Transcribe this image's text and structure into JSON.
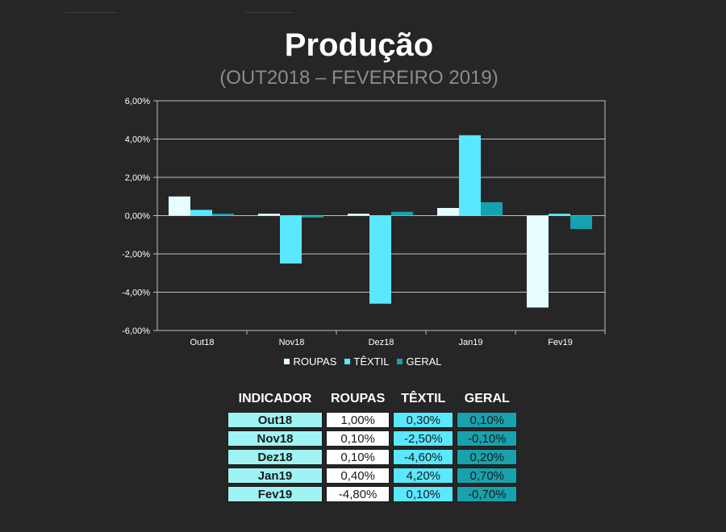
{
  "title": "Produção",
  "subtitle": "(OUT2018 – FEVEREIRO 2019)",
  "colors": {
    "background": "#262626",
    "roupas": "#e6feff",
    "textil": "#5ae8ff",
    "geral": "#15a1ad",
    "indicator_cell": "#9ff3f3"
  },
  "chart_data": {
    "type": "bar",
    "categories": [
      "Out18",
      "Nov18",
      "Dez18",
      "Jan19",
      "Fev19"
    ],
    "series": [
      {
        "name": "ROUPAS",
        "values": [
          1.0,
          0.1,
          0.1,
          0.4,
          -4.8
        ]
      },
      {
        "name": "TÊXTIL",
        "values": [
          0.3,
          -2.5,
          -4.6,
          4.2,
          0.1
        ]
      },
      {
        "name": "GERAL",
        "values": [
          0.1,
          -0.1,
          0.2,
          0.7,
          -0.7
        ]
      }
    ],
    "ylim": [
      -6,
      6
    ],
    "yticks": [
      6,
      4,
      2,
      0,
      -2,
      -4,
      -6
    ],
    "ytick_labels": [
      "6,00%",
      "4,00%",
      "2,00%",
      "0,00%",
      "-2,00%",
      "-4,00%",
      "-6,00%"
    ],
    "grid": true,
    "legend": "bottom"
  },
  "table": {
    "headers": [
      "INDICADOR",
      "ROUPAS",
      "TÊXTIL",
      "GERAL"
    ],
    "rows": [
      [
        "Out18",
        "1,00%",
        "0,30%",
        "0,10%"
      ],
      [
        "Nov18",
        "0,10%",
        "-2,50%",
        "-0,10%"
      ],
      [
        "Dez18",
        "0,10%",
        "-4,60%",
        "0,20%"
      ],
      [
        "Jan19",
        "0,40%",
        "4,20%",
        "0,70%"
      ],
      [
        "Fev19",
        "-4,80%",
        "0,10%",
        "-0,70%"
      ]
    ]
  }
}
